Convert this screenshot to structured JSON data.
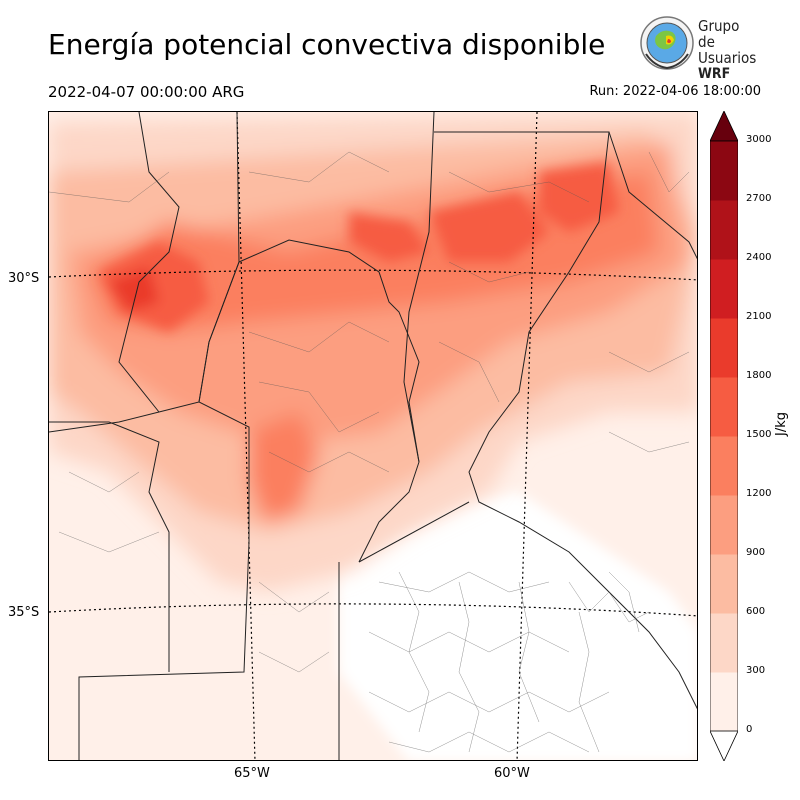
{
  "header": {
    "title": "Energía potencial convectiva disponible",
    "valid_time": "2022-04-07 00:00:00 ARG",
    "run_time": "Run: 2022-04-06 18:00:00"
  },
  "logo": {
    "line1": "Grupo de",
    "line2": "Usuarios",
    "line3": "WRF"
  },
  "map": {
    "lat_labels": [
      "30°S",
      "35°S"
    ],
    "lon_labels": [
      "65°W",
      "60°W"
    ],
    "field": "CAPE"
  },
  "colorbar": {
    "unit": "J/kg",
    "ticks": [
      "0",
      "300",
      "600",
      "900",
      "1200",
      "1500",
      "1800",
      "2100",
      "2400",
      "2700",
      "3000"
    ],
    "colors": [
      "#fff0e9",
      "#fdd7c7",
      "#fcbca2",
      "#fc9e80",
      "#fb7f5f",
      "#f65c42",
      "#ea3b2c",
      "#d01e21",
      "#b01219",
      "#8c0712"
    ],
    "extend_color": "#67000d"
  }
}
